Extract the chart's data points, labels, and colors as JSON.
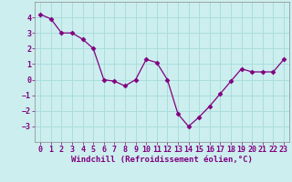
{
  "x": [
    0,
    1,
    2,
    3,
    4,
    5,
    6,
    7,
    8,
    9,
    10,
    11,
    12,
    13,
    14,
    15,
    16,
    17,
    18,
    19,
    20,
    21,
    22,
    23
  ],
  "y": [
    4.2,
    3.9,
    3.0,
    3.0,
    2.6,
    2.0,
    0.0,
    -0.1,
    -0.4,
    0.0,
    1.3,
    1.1,
    0.0,
    -2.2,
    -3.0,
    -2.4,
    -1.7,
    -0.9,
    -0.1,
    0.7,
    0.5,
    0.5,
    0.5,
    1.3
  ],
  "line_color": "#800080",
  "marker": "D",
  "marker_size": 2.5,
  "bg_color": "#cceeee",
  "grid_color": "#aadddd",
  "xlabel": "Windchill (Refroidissement éolien,°C)",
  "xlabel_fontsize": 6.5,
  "tick_fontsize": 6.0,
  "ylim": [
    -4,
    5
  ],
  "yticks": [
    -3,
    -2,
    -1,
    0,
    1,
    2,
    3,
    4
  ],
  "xticks": [
    0,
    1,
    2,
    3,
    4,
    5,
    6,
    7,
    8,
    9,
    10,
    11,
    12,
    13,
    14,
    15,
    16,
    17,
    18,
    19,
    20,
    21,
    22,
    23
  ]
}
